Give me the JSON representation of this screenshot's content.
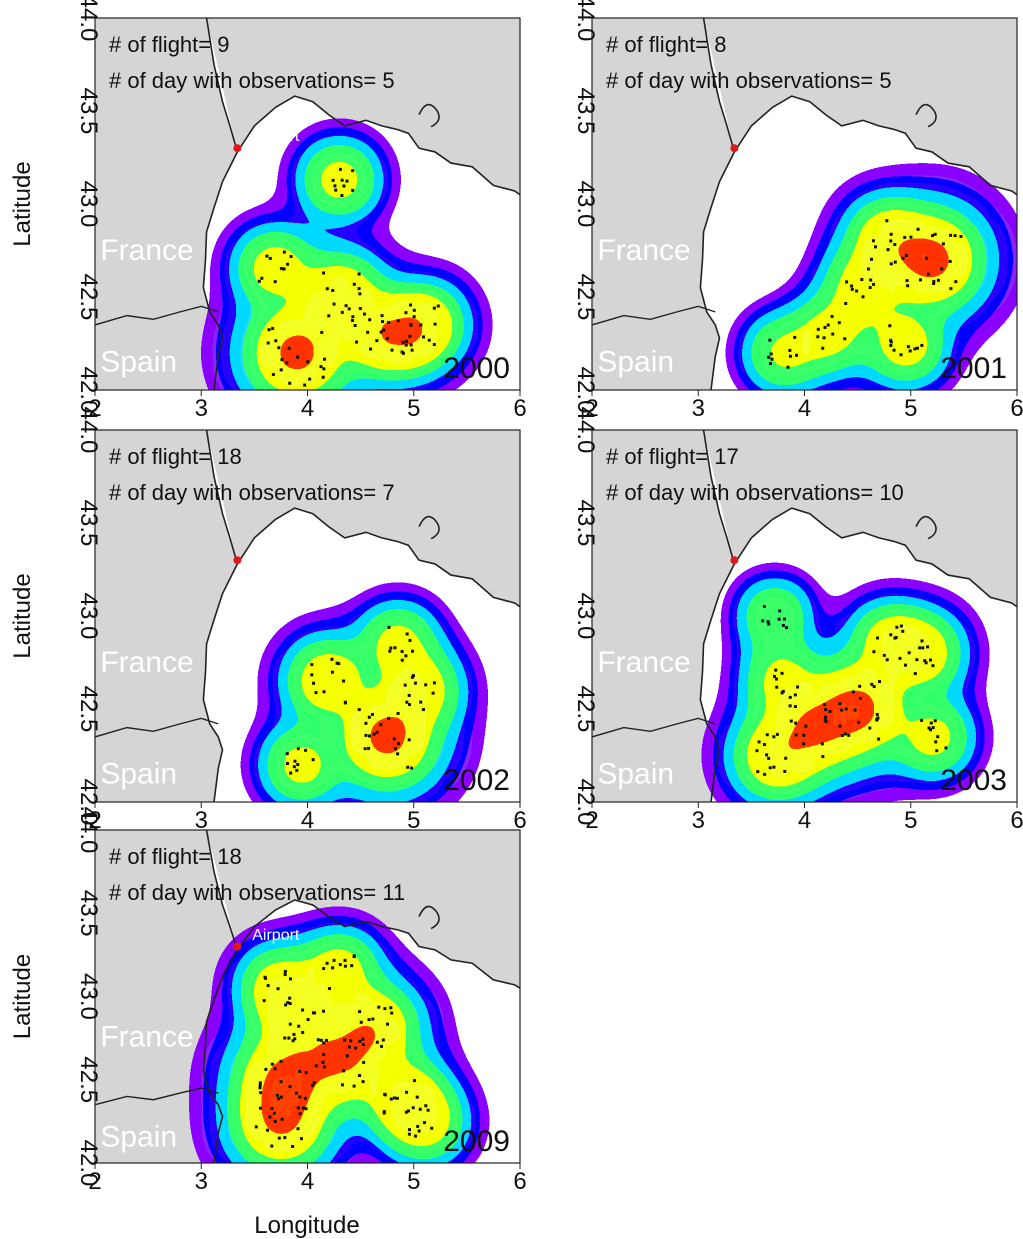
{
  "figure": {
    "xlabel": "Longitude",
    "ylabel": "Latitude"
  },
  "labels": {
    "airport": "Airport",
    "france": "France",
    "spain": "Spain"
  },
  "colors": {
    "land": "#d5d5d5",
    "sea": "#ffffff",
    "coast": "#222222",
    "airport": "#e01818",
    "density_scale": [
      "#8a18ff",
      "#1a10ff",
      "#19d9ff",
      "#39ff6a",
      "#f4ff1c",
      "#ff3a10"
    ]
  },
  "chart_data": [
    {
      "type": "heatmap",
      "year": "2000",
      "info_lines": [
        "# of flight= 9",
        "# of day with observations= 5"
      ],
      "xlim": [
        2,
        6
      ],
      "ylim": [
        42.0,
        44.0
      ],
      "xticks": [
        "2",
        "3",
        "4",
        "5",
        "6"
      ],
      "yticks": [
        "42.0",
        "42.5",
        "43.0",
        "43.5",
        "44.0"
      ],
      "hotspots": [
        [
          3.9,
          42.2,
          1.0
        ],
        [
          4.3,
          42.5,
          0.55
        ],
        [
          4.9,
          42.3,
          0.5
        ],
        [
          3.7,
          42.65,
          0.35
        ],
        [
          4.3,
          43.13,
          0.3
        ],
        [
          4.6,
          42.3,
          0.4
        ],
        [
          5.1,
          42.35,
          0.4
        ]
      ]
    },
    {
      "type": "heatmap",
      "year": "2001",
      "info_lines": [
        "# of flight= 8",
        "# of day with observations= 5"
      ],
      "xlim": [
        2,
        6
      ],
      "ylim": [
        42.0,
        44.0
      ],
      "xticks": [
        "2",
        "3",
        "4",
        "5",
        "6"
      ],
      "yticks": [
        "42.0",
        "42.5",
        "43.0",
        "43.5",
        "44.0"
      ],
      "hotspots": [
        [
          5.2,
          42.7,
          1.0
        ],
        [
          4.8,
          42.8,
          0.5
        ],
        [
          4.55,
          42.55,
          0.35
        ],
        [
          4.25,
          42.3,
          0.3
        ],
        [
          4.95,
          42.25,
          0.35
        ],
        [
          3.8,
          42.2,
          0.25
        ]
      ]
    },
    {
      "type": "heatmap",
      "year": "2002",
      "info_lines": [
        "# of flight= 18",
        "# of day with observations= 7"
      ],
      "xlim": [
        2,
        6
      ],
      "ylim": [
        42.0,
        44.0
      ],
      "xticks": [
        "2",
        "3",
        "4",
        "5",
        "6"
      ],
      "yticks": [
        "42.0",
        "42.5",
        "43.0",
        "43.5",
        "44.0"
      ],
      "hotspots": [
        [
          4.75,
          42.35,
          1.0
        ],
        [
          4.2,
          42.65,
          0.45
        ],
        [
          5.05,
          42.6,
          0.4
        ],
        [
          3.95,
          42.2,
          0.3
        ],
        [
          4.85,
          42.85,
          0.3
        ]
      ]
    },
    {
      "type": "heatmap",
      "year": "2003",
      "info_lines": [
        "# of flight= 17",
        "# of day with observations= 10"
      ],
      "xlim": [
        2,
        6
      ],
      "ylim": [
        42.0,
        44.0
      ],
      "xticks": [
        "2",
        "3",
        "4",
        "5",
        "6"
      ],
      "yticks": [
        "42.0",
        "42.5",
        "43.0",
        "43.5",
        "44.0"
      ],
      "hotspots": [
        [
          4.5,
          42.5,
          1.0
        ],
        [
          4.1,
          42.4,
          0.8
        ],
        [
          3.75,
          42.25,
          0.55
        ],
        [
          5.1,
          42.8,
          0.4
        ],
        [
          4.8,
          42.85,
          0.35
        ],
        [
          5.2,
          42.35,
          0.3
        ],
        [
          3.8,
          42.65,
          0.3
        ],
        [
          3.72,
          43.0,
          0.2
        ]
      ]
    },
    {
      "type": "heatmap",
      "year": "2009",
      "info_lines": [
        "# of flight= 18",
        "# of day with observations= 11"
      ],
      "xlim": [
        2,
        6
      ],
      "ylim": [
        42.0,
        44.0
      ],
      "xticks": [
        "2",
        "3",
        "4",
        "5",
        "6"
      ],
      "yticks": [
        "42.0",
        "42.5",
        "43.0",
        "43.5",
        "44.0"
      ],
      "hotspots": [
        [
          3.8,
          42.5,
          1.0
        ],
        [
          3.75,
          42.25,
          0.85
        ],
        [
          4.3,
          42.6,
          0.75
        ],
        [
          4.6,
          42.8,
          0.7
        ],
        [
          3.95,
          42.85,
          0.55
        ],
        [
          4.9,
          42.4,
          0.45
        ],
        [
          4.3,
          43.15,
          0.35
        ],
        [
          3.75,
          43.05,
          0.4
        ],
        [
          5.1,
          42.25,
          0.35
        ]
      ]
    }
  ]
}
